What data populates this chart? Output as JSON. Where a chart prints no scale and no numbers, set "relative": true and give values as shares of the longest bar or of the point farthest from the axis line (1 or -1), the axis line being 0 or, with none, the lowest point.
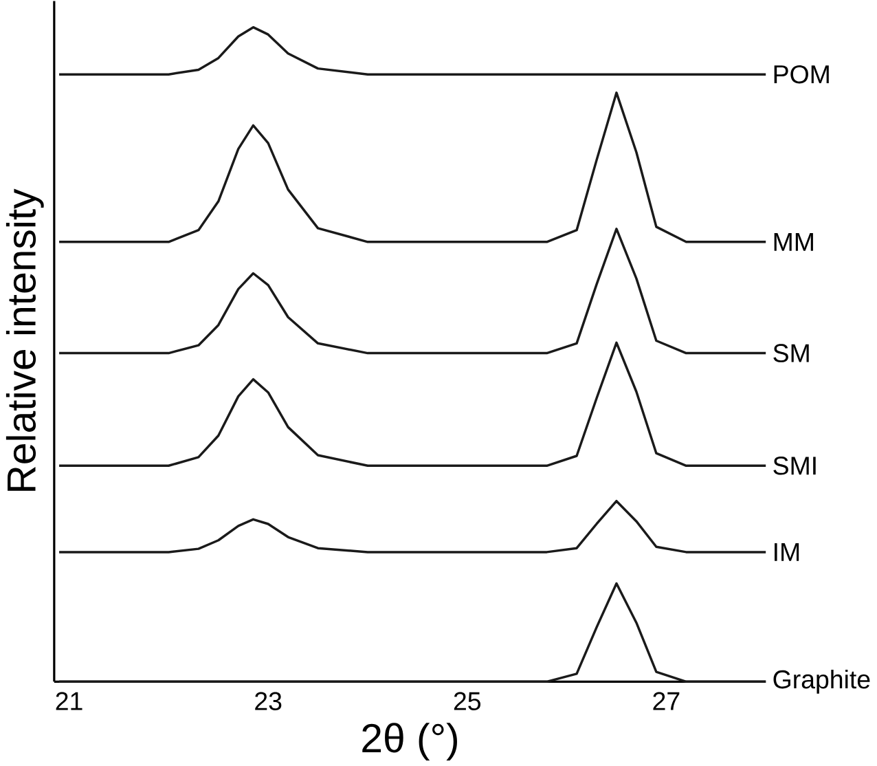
{
  "chart_data": {
    "type": "line",
    "relative": true,
    "xlabel": "2θ (°)",
    "ylabel": "Relative intensity",
    "xlim": [
      20.85,
      28.0
    ],
    "xticks": [
      21,
      23,
      25,
      27
    ],
    "x": [
      20.9,
      21.5,
      22.0,
      22.3,
      22.5,
      22.7,
      22.85,
      23.0,
      23.2,
      23.5,
      24.0,
      25.0,
      25.8,
      26.1,
      26.3,
      26.5,
      26.7,
      26.9,
      27.2,
      28.0
    ],
    "series": [
      {
        "name": "POM",
        "color": "#1a1a1a",
        "values": [
          0.928,
          0.928,
          0.928,
          0.935,
          0.953,
          0.986,
          1.0,
          0.989,
          0.96,
          0.937,
          0.928,
          0.928,
          0.928,
          0.928,
          0.928,
          0.928,
          0.928,
          0.928,
          0.928,
          0.928
        ]
      },
      {
        "name": "MM",
        "color": "#1a1a1a",
        "values": [
          0.672,
          0.672,
          0.672,
          0.69,
          0.734,
          0.814,
          0.85,
          0.823,
          0.752,
          0.693,
          0.672,
          0.672,
          0.672,
          0.69,
          0.797,
          0.9,
          0.809,
          0.695,
          0.672,
          0.672
        ]
      },
      {
        "name": "SM",
        "color": "#1a1a1a",
        "values": [
          0.502,
          0.502,
          0.502,
          0.514,
          0.545,
          0.6,
          0.624,
          0.606,
          0.557,
          0.517,
          0.502,
          0.502,
          0.502,
          0.517,
          0.607,
          0.692,
          0.616,
          0.521,
          0.502,
          0.502
        ]
      },
      {
        "name": "SMI",
        "color": "#1a1a1a",
        "values": [
          0.33,
          0.33,
          0.33,
          0.343,
          0.376,
          0.436,
          0.462,
          0.442,
          0.389,
          0.346,
          0.33,
          0.33,
          0.33,
          0.345,
          0.433,
          0.518,
          0.443,
          0.349,
          0.33,
          0.33
        ]
      },
      {
        "name": "IM",
        "color": "#1a1a1a",
        "values": [
          0.198,
          0.198,
          0.198,
          0.203,
          0.216,
          0.238,
          0.248,
          0.241,
          0.221,
          0.204,
          0.198,
          0.198,
          0.198,
          0.204,
          0.241,
          0.276,
          0.245,
          0.206,
          0.198,
          0.198
        ]
      },
      {
        "name": "Graphite",
        "color": "#1a1a1a",
        "values": [
          0,
          0,
          0,
          0,
          0,
          0,
          0,
          0,
          0,
          0,
          0,
          0,
          0,
          0.012,
          0.083,
          0.15,
          0.09,
          0.015,
          0,
          0
        ]
      }
    ]
  }
}
